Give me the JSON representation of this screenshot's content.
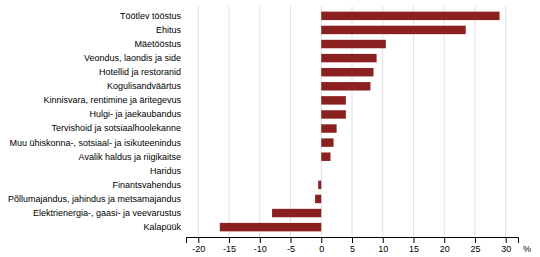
{
  "chart_data": {
    "type": "bar",
    "orientation": "horizontal",
    "categories": [
      "Töötlev tööstus",
      "Ehitus",
      "Mäetööstus",
      "Veondus, laondis ja side",
      "Hotellid ja restoranid",
      "Kogulisandväärtus",
      "Kinnisvara, rentimine ja äritegevus",
      "Hulgi- ja jaekaubandus",
      "Tervishoid ja sotsiaalhoolekanne",
      "Muu ühiskonna-, sotsiaal- ja isikuteenindus",
      "Avalik haldus ja riigikaitse",
      "Haridus",
      "Finantsvahendus",
      "Põllumajandus, jahindus ja metsamajandus",
      "Elektrienergia-, gaasi- ja veevarustus",
      "Kalapüük"
    ],
    "values": [
      29.0,
      23.5,
      10.5,
      9.0,
      8.5,
      8.0,
      4.0,
      4.0,
      2.5,
      2.0,
      1.5,
      0.0,
      -0.5,
      -1.0,
      -8.0,
      -16.5
    ],
    "color": "#8B2020",
    "xlabel": "%",
    "xlim": [
      -22,
      32
    ],
    "xticks": [
      -20,
      -15,
      -10,
      -5,
      0,
      5,
      10,
      15,
      20,
      25,
      30
    ],
    "grid": true
  }
}
